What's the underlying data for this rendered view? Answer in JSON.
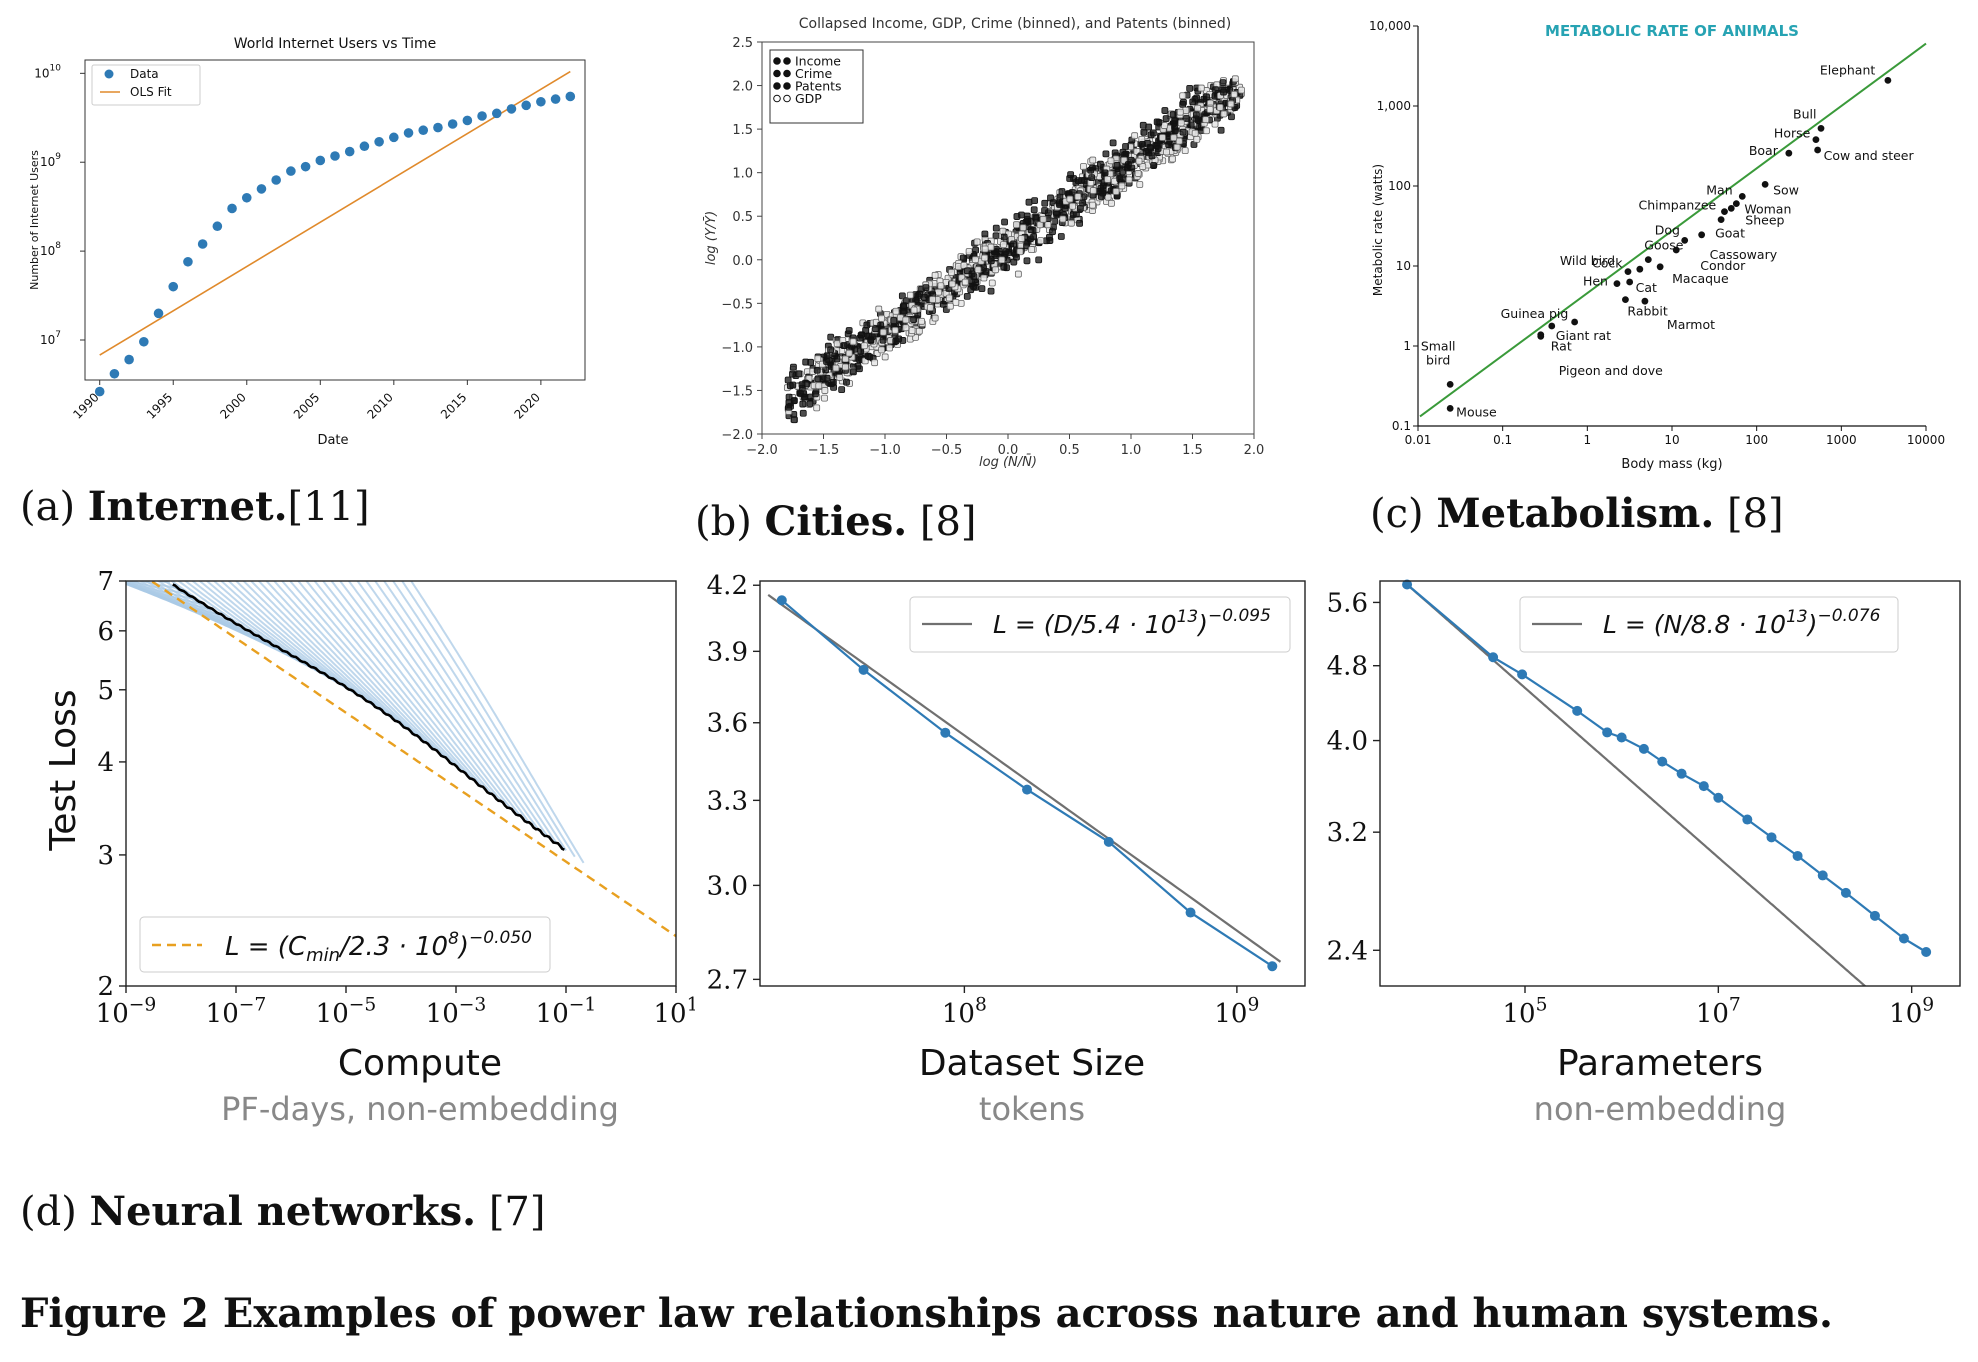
{
  "captions": {
    "a_label": "(a)",
    "a_text": "Internet.",
    "a_ref": "[11]",
    "b_label": "(b)",
    "b_text": "Cities.",
    "b_ref": "[8]",
    "c_label": "(c)",
    "c_text": "Metabolism.",
    "c_ref": "[8]",
    "d_label": "(d)",
    "d_text": "Neural networks.",
    "d_ref": "[7]",
    "figure": "Figure 2 Examples of power law relationships across nature and human systems."
  },
  "chart_data": [
    {
      "id": "internet",
      "type": "scatter",
      "title": "World Internet Users vs Time",
      "xlabel": "Date",
      "ylabel": "Number of Internet Users",
      "xlim": [
        1989,
        2023
      ],
      "ylim_log10": [
        6.55,
        10.15
      ],
      "yscale": "log",
      "xticks": [
        "1990",
        "1995",
        "2000",
        "2005",
        "2010",
        "2015",
        "2020"
      ],
      "xtick_values": [
        1990,
        1995,
        2000,
        2005,
        2010,
        2015,
        2020
      ],
      "yticks": [
        "10",
        "10",
        "10",
        "10"
      ],
      "ytick_exponents": [
        "7",
        "8",
        "9",
        "10"
      ],
      "ytick_values_log10": [
        7,
        8,
        9,
        10
      ],
      "legend": [
        "Data",
        "OLS Fit"
      ],
      "legend_position": "top-left",
      "colors": {
        "data": "#2e7ab5",
        "fit": "#e08a2c"
      },
      "series": [
        {
          "name": "Data",
          "x": [
            1990,
            1991,
            1992,
            1993,
            1994,
            1995,
            1996,
            1997,
            1998,
            1999,
            2000,
            2001,
            2002,
            2003,
            2004,
            2005,
            2006,
            2007,
            2008,
            2009,
            2010,
            2011,
            2012,
            2013,
            2014,
            2015,
            2016,
            2017,
            2018,
            2019,
            2020,
            2021,
            2022
          ],
          "log10y": [
            6.42,
            6.62,
            6.78,
            6.98,
            7.3,
            7.6,
            7.88,
            8.08,
            8.28,
            8.48,
            8.6,
            8.7,
            8.8,
            8.9,
            8.95,
            9.02,
            9.07,
            9.12,
            9.18,
            9.23,
            9.28,
            9.33,
            9.36,
            9.39,
            9.43,
            9.47,
            9.52,
            9.55,
            9.6,
            9.64,
            9.68,
            9.71,
            9.74
          ]
        },
        {
          "name": "OLS Fit",
          "x": [
            1990,
            2022
          ],
          "log10y": [
            6.83,
            10.02
          ]
        }
      ]
    },
    {
      "id": "cities",
      "type": "scatter",
      "title": "Collapsed Income, GDP, Crime (binned), and Patents (binned)",
      "xlabel": "log (N/N̄)",
      "ylabel": "log (Y/Ȳ)",
      "xlim": [
        -2.0,
        2.0
      ],
      "ylim": [
        -2.0,
        2.5
      ],
      "xticks": [
        "−2.0",
        "−1.5",
        "−1.0",
        "−0.5",
        "0.0",
        "0.5",
        "1.0",
        "1.5",
        "2.0"
      ],
      "xtick_values": [
        -2.0,
        -1.5,
        -1.0,
        -0.5,
        0.0,
        0.5,
        1.0,
        1.5,
        2.0
      ],
      "yticks": [
        "−2.0",
        "−1.5",
        "−1.0",
        "−0.5",
        "0.0",
        "0.5",
        "1.0",
        "1.5",
        "2.0",
        "2.5"
      ],
      "ytick_values": [
        -2.0,
        -1.5,
        -1.0,
        -0.5,
        0.0,
        0.5,
        1.0,
        1.5,
        2.0,
        2.5
      ],
      "legend": [
        "Income",
        "Crime",
        "Patents",
        "GDP"
      ],
      "legend_position": "top-left",
      "trend": {
        "x": [
          -1.8,
          1.9
        ],
        "y": [
          -1.6,
          2.0
        ]
      }
    },
    {
      "id": "metabolism",
      "type": "scatter",
      "title": "METABOLIC RATE OF ANIMALS",
      "xlabel": "Body mass (kg)",
      "ylabel": "Metabolic rate (watts)",
      "xscale": "log",
      "yscale": "log",
      "xlim_log10": [
        -2,
        4
      ],
      "ylim_log10": [
        -1,
        4
      ],
      "xticks": [
        "0.01",
        "0.1",
        "1",
        "10",
        "100",
        "1000",
        "10000"
      ],
      "xtick_values_log10": [
        -2,
        -1,
        0,
        1,
        2,
        3,
        4
      ],
      "yticks": [
        "0.1",
        "1",
        "10",
        "100",
        "1,000",
        "10,000"
      ],
      "ytick_values_log10": [
        -1,
        0,
        1,
        2,
        3,
        4
      ],
      "colors": {
        "fit": "#3a9a3a",
        "title": "#27a3b3"
      },
      "fit": {
        "log10x": [
          -2,
          4
        ],
        "log10y": [
          -0.88,
          3.78
        ]
      },
      "animals": [
        {
          "name": "Elephant",
          "log10x": 3.55,
          "log10y": 3.32
        },
        {
          "name": "Bull",
          "log10x": 2.76,
          "log10y": 2.72
        },
        {
          "name": "Horse",
          "log10x": 2.7,
          "log10y": 2.58
        },
        {
          "name": "Boar",
          "log10x": 2.38,
          "log10y": 2.41
        },
        {
          "name": "Cow and steer",
          "log10x": 2.72,
          "log10y": 2.45
        },
        {
          "name": "Man",
          "log10x": 1.83,
          "log10y": 1.87
        },
        {
          "name": "Sow",
          "log10x": 2.1,
          "log10y": 2.02
        },
        {
          "name": "Chimpanzee",
          "log10x": 1.62,
          "log10y": 1.68
        },
        {
          "name": "Woman",
          "log10x": 1.76,
          "log10y": 1.78
        },
        {
          "name": "Dog",
          "log10x": 1.15,
          "log10y": 1.32
        },
        {
          "name": "Goat",
          "log10x": 1.58,
          "log10y": 1.58
        },
        {
          "name": "Sheep",
          "log10x": 1.7,
          "log10y": 1.72
        },
        {
          "name": "Cassowary",
          "log10x": 1.35,
          "log10y": 1.39
        },
        {
          "name": "Wild bird",
          "log10x": 0.62,
          "log10y": 0.96
        },
        {
          "name": "Goose",
          "log10x": 0.72,
          "log10y": 1.08
        },
        {
          "name": "Condor",
          "log10x": 1.05,
          "log10y": 1.2
        },
        {
          "name": "Cock",
          "log10x": 0.48,
          "log10y": 0.93
        },
        {
          "name": "Hen",
          "log10x": 0.35,
          "log10y": 0.78
        },
        {
          "name": "Cat",
          "log10x": 0.5,
          "log10y": 0.8
        },
        {
          "name": "Macaque",
          "log10x": 0.86,
          "log10y": 0.99
        },
        {
          "name": "Rabbit",
          "log10x": 0.45,
          "log10y": 0.58
        },
        {
          "name": "Guinea pig",
          "log10x": -0.15,
          "log10y": 0.3
        },
        {
          "name": "Giant rat",
          "log10x": -0.42,
          "log10y": 0.25
        },
        {
          "name": "Marmot",
          "log10x": 0.68,
          "log10y": 0.56
        },
        {
          "name": "Rat",
          "log10x": -0.55,
          "log10y": 0.12
        },
        {
          "name": "Pigeon and dove",
          "log10x": -0.55,
          "log10y": 0.14
        },
        {
          "name": "Small bird",
          "log10x": -1.62,
          "log10y": -0.48
        },
        {
          "name": "Mouse",
          "log10x": -1.62,
          "log10y": -0.78
        }
      ]
    },
    {
      "id": "compute",
      "type": "line",
      "xlabel": "Compute",
      "xsublabel": "PF-days, non-embedding",
      "ylabel": "Test Loss",
      "xscale": "log",
      "yscale": "log",
      "xlim_log10": [
        -9,
        1
      ],
      "ylim": [
        2,
        7
      ],
      "xtick_bases": [
        "10",
        "10",
        "10",
        "10",
        "10",
        "10"
      ],
      "xtick_exponents": [
        "−9",
        "−7",
        "−5",
        "−3",
        "−1",
        "1"
      ],
      "xtick_values_log10": [
        -9,
        -7,
        -5,
        -3,
        -1,
        1
      ],
      "yticks": [
        "2",
        "3",
        "4",
        "5",
        "6",
        "7"
      ],
      "ytick_values": [
        2,
        3,
        4,
        5,
        6,
        7
      ],
      "legend_position": "lower-left",
      "fit_label_lhs": "L = (C",
      "fit_label_sub": "min",
      "fit_label_mid": "/2.3 · 10",
      "fit_label_exp8": "8",
      "fit_label_rhs": ")",
      "fit_label_exp": "−0.050",
      "fit": {
        "C0": 230000000.0,
        "alpha": 0.05
      },
      "colors": {
        "fit": "#e8a020",
        "curves": "#a9c9e6",
        "frontier": "#000000"
      }
    },
    {
      "id": "dataset",
      "type": "line",
      "xlabel": "Dataset Size",
      "xsublabel": "tokens",
      "xscale": "log",
      "yscale": "log",
      "xlim_log10": [
        7.25,
        9.25
      ],
      "ylim": [
        2.68,
        4.22
      ],
      "xtick_bases": [
        "10",
        "10"
      ],
      "xtick_exponents": [
        "8",
        "9"
      ],
      "xtick_values_log10": [
        8,
        9
      ],
      "yticks": [
        "2.7",
        "3.0",
        "3.3",
        "3.6",
        "3.9",
        "4.2"
      ],
      "ytick_values": [
        2.7,
        3.0,
        3.3,
        3.6,
        3.9,
        4.2
      ],
      "legend_position": "top-right",
      "fit_label_lhs": "L = (D/5.4 · 10",
      "fit_label_exp13": "13",
      "fit_label_rhs": ")",
      "fit_label_exp": "−0.095",
      "fit": {
        "D0": 54000000000000.0,
        "alpha": 0.095
      },
      "colors": {
        "data": "#2e7ab5",
        "fit": "#707070"
      },
      "series": [
        {
          "name": "",
          "log10x": [
            7.33,
            7.63,
            7.93,
            8.23,
            8.53,
            8.83,
            9.13
          ],
          "y": [
            4.13,
            3.82,
            3.56,
            3.34,
            3.15,
            2.91,
            2.74
          ]
        }
      ]
    },
    {
      "id": "parameters",
      "type": "line",
      "xlabel": "Parameters",
      "xsublabel": "non-embedding",
      "xscale": "log",
      "yscale": "log",
      "xlim_log10": [
        3.5,
        9.5
      ],
      "ylim": [
        2.2,
        5.9
      ],
      "xtick_bases": [
        "10",
        "10",
        "10"
      ],
      "xtick_exponents": [
        "5",
        "7",
        "9"
      ],
      "xtick_values_log10": [
        5,
        7,
        9
      ],
      "yticks": [
        "2.4",
        "3.2",
        "4.0",
        "4.8",
        "5.6"
      ],
      "ytick_values": [
        2.4,
        3.2,
        4.0,
        4.8,
        5.6
      ],
      "legend_position": "top-right",
      "fit_label_lhs": "L = (N/8.8 · 10",
      "fit_label_exp13": "13",
      "fit_label_rhs": ")",
      "fit_label_exp": "−0.076",
      "fit": {
        "N0": 88000000000000.0,
        "alpha": 0.076
      },
      "colors": {
        "data": "#2e7ab5",
        "fit": "#707070"
      },
      "series": [
        {
          "name": "",
          "log10x": [
            3.78,
            4.67,
            4.97,
            5.54,
            5.85,
            6.0,
            6.23,
            6.42,
            6.62,
            6.85,
            7.0,
            7.3,
            7.55,
            7.82,
            8.08,
            8.32,
            8.62,
            8.92,
            9.15
          ],
          "y": [
            5.85,
            4.9,
            4.7,
            4.3,
            4.08,
            4.03,
            3.92,
            3.8,
            3.69,
            3.58,
            3.48,
            3.3,
            3.16,
            3.02,
            2.88,
            2.76,
            2.61,
            2.47,
            2.39
          ]
        }
      ]
    }
  ]
}
